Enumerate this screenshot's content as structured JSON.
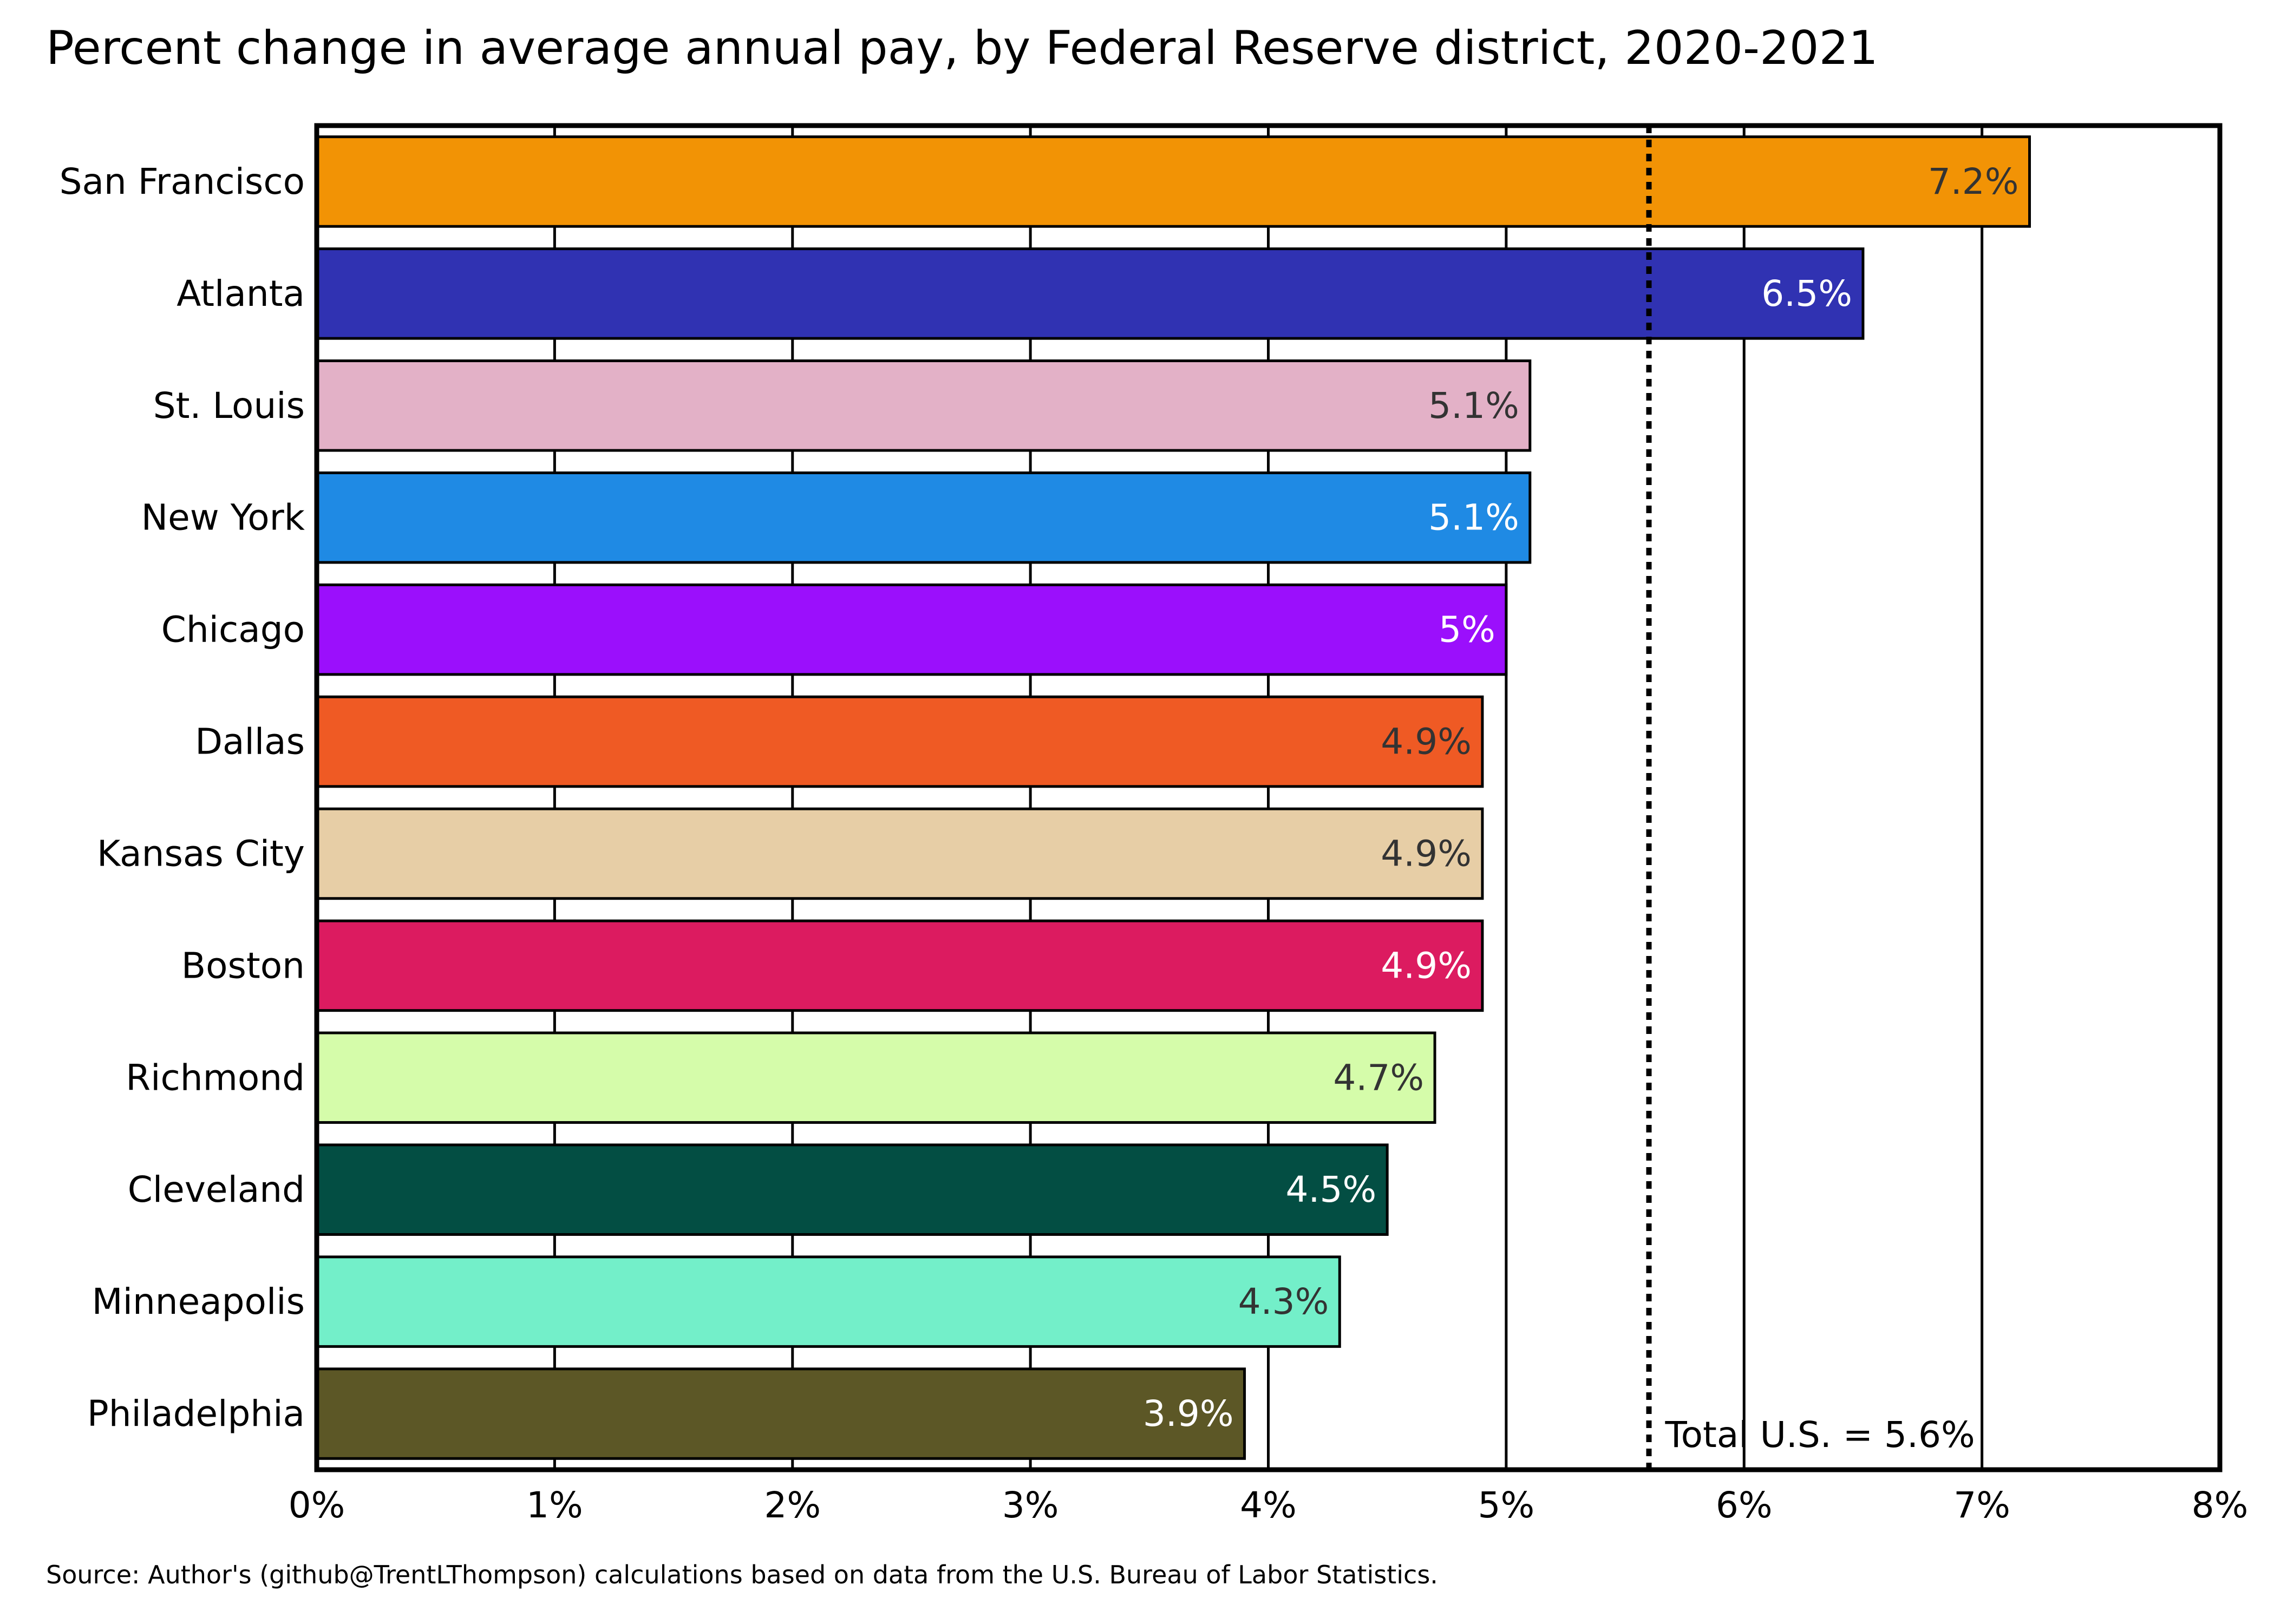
{
  "chart_data": {
    "type": "bar",
    "orientation": "horizontal",
    "title": "Percent change in average annual pay, by Federal Reserve district, 2020-2021",
    "source": "Source: Author's (github@TrentLThompson) calculations based on data from the U.S. Bureau of Labor Statistics.",
    "categories": [
      "San Francisco",
      "Atlanta",
      "St. Louis",
      "New York",
      "Chicago",
      "Dallas",
      "Kansas City",
      "Boston",
      "Richmond",
      "Cleveland",
      "Minneapolis",
      "Philadelphia"
    ],
    "values": [
      7.2,
      6.5,
      5.1,
      5.1,
      5.0,
      4.9,
      4.9,
      4.9,
      4.7,
      4.5,
      4.3,
      3.9
    ],
    "value_labels": [
      "7.2%",
      "6.5%",
      "5.1%",
      "5.1%",
      "5%",
      "4.9%",
      "4.9%",
      "4.9%",
      "4.7%",
      "4.5%",
      "4.3%",
      "3.9%"
    ],
    "colors": [
      "#f29305",
      "#3032b2",
      "#e3b1c7",
      "#1f8ae4",
      "#9b0ffc",
      "#ef5a24",
      "#e7cea6",
      "#dc1b60",
      "#d5fcaa",
      "#034e43",
      "#73efc9",
      "#5c5726"
    ],
    "label_colors": [
      "#333333",
      "#ffffff",
      "#333333",
      "#ffffff",
      "#ffffff",
      "#333333",
      "#333333",
      "#ffffff",
      "#333333",
      "#ffffff",
      "#333333",
      "#ffffff"
    ],
    "xlim": [
      0,
      8
    ],
    "x_ticks": [
      0,
      1,
      2,
      3,
      4,
      5,
      6,
      7,
      8
    ],
    "x_tick_labels": [
      "0%",
      "1%",
      "2%",
      "3%",
      "4%",
      "5%",
      "6%",
      "7%",
      "8%"
    ],
    "grid": "vertical",
    "reference_line": {
      "value": 5.6,
      "label": "Total U.S. = 5.6%",
      "style": "dotted"
    }
  }
}
